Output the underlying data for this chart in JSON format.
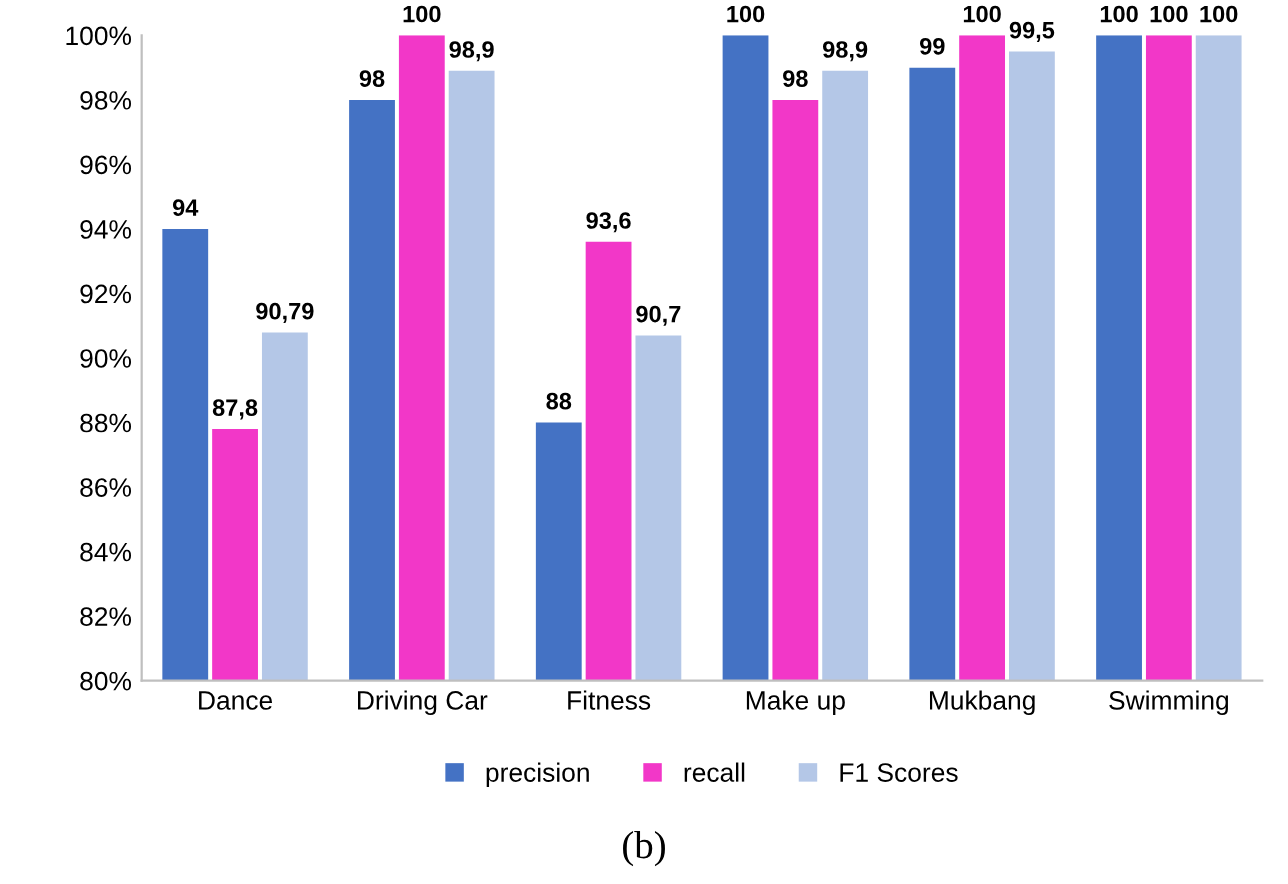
{
  "chart_data": {
    "type": "bar",
    "categories": [
      "Dance",
      "Driving Car",
      "Fitness",
      "Make up",
      "Mukbang",
      "Swimming"
    ],
    "series": [
      {
        "name": "precision",
        "color": "#4472c4",
        "values": [
          94,
          98,
          88,
          100,
          99,
          100
        ],
        "value_labels": [
          "94",
          "98",
          "88",
          "100",
          "99",
          "100"
        ]
      },
      {
        "name": "recall",
        "color": "#f237c8",
        "values": [
          87.8,
          100,
          93.6,
          98,
          100,
          100
        ],
        "value_labels": [
          "87,8",
          "100",
          "93,6",
          "98",
          "100",
          "100"
        ]
      },
      {
        "name": "F1 Scores",
        "color": "#b4c7e7",
        "values": [
          90.79,
          98.9,
          90.7,
          98.9,
          99.5,
          100
        ],
        "value_labels": [
          "90,79",
          "98,9",
          "90,7",
          "98,9",
          "99,5",
          "100"
        ]
      }
    ],
    "ylim": [
      80,
      100
    ],
    "yticks": [
      {
        "value": 80,
        "label": "80%"
      },
      {
        "value": 82,
        "label": "82%"
      },
      {
        "value": 84,
        "label": "84%"
      },
      {
        "value": 86,
        "label": "86%"
      },
      {
        "value": 88,
        "label": "88%"
      },
      {
        "value": 90,
        "label": "90%"
      },
      {
        "value": 92,
        "label": "92%"
      },
      {
        "value": 94,
        "label": "94%"
      },
      {
        "value": 96,
        "label": "96%"
      },
      {
        "value": 98,
        "label": "98%"
      },
      {
        "value": 100,
        "label": "100%"
      }
    ],
    "legend": "bottom",
    "grid": false,
    "annotations": [
      "(b)"
    ]
  }
}
